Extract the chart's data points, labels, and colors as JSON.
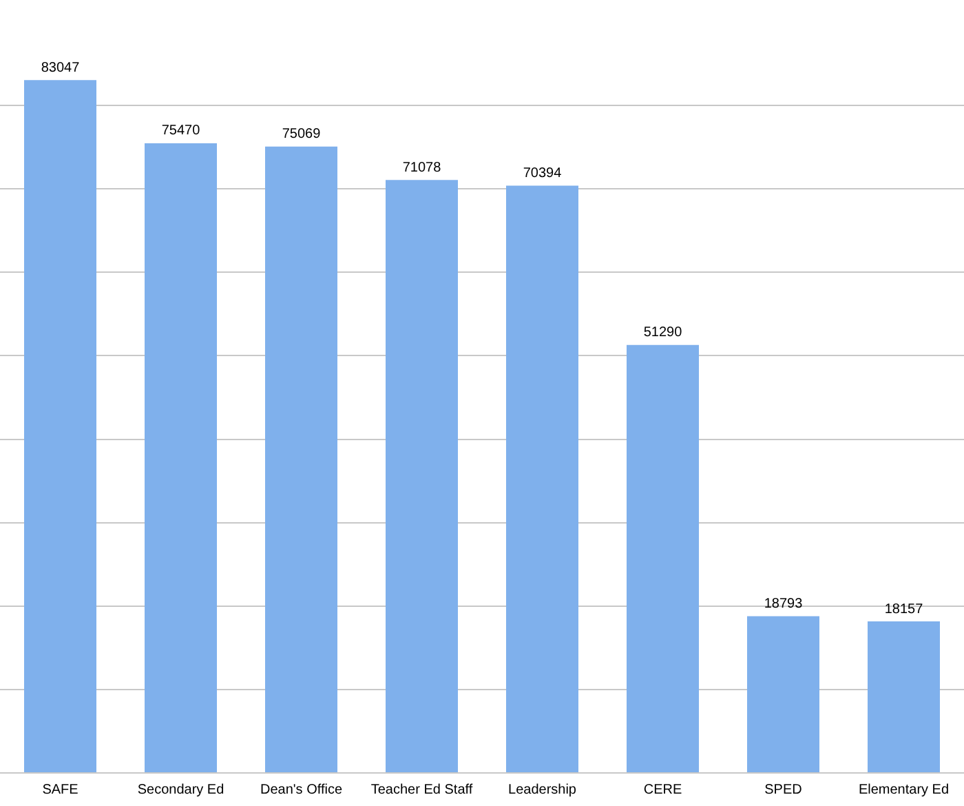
{
  "chart_data": {
    "type": "bar",
    "categories": [
      "SAFE",
      "Secondary Ed",
      "Dean's Office",
      "Teacher Ed Staff",
      "Leadership",
      "CERE",
      "SPED",
      "Elementary Ed"
    ],
    "values": [
      83047,
      75470,
      75069,
      71078,
      70394,
      51290,
      18793,
      18157
    ],
    "color": "#7fb0ec",
    "yticks": [
      {
        "value": 0,
        "label": null
      },
      {
        "value": 10000,
        "label": null
      },
      {
        "value": 20000,
        "label": null
      },
      {
        "value": 30000,
        "label": null
      },
      {
        "value": 40000,
        "label": null
      },
      {
        "value": 50000,
        "label": null
      },
      {
        "value": 60000,
        "label": null
      },
      {
        "value": 70000,
        "label": null
      },
      {
        "value": 80000,
        "label": null
      }
    ],
    "tick_labels": "x",
    "grid": "y",
    "data_labels": true,
    "legend": false
  }
}
